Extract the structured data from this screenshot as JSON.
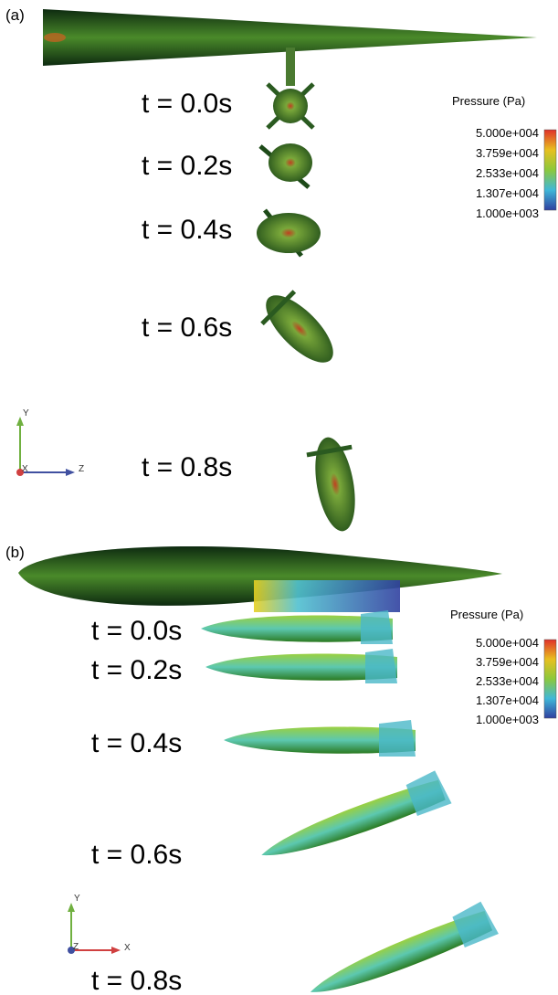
{
  "panels": [
    {
      "label": "(a)",
      "times": [
        "t = 0.0s",
        "t = 0.2s",
        "t = 0.4s",
        "t = 0.6s",
        "t = 0.8s"
      ],
      "colorbar": {
        "title": "Pressure (Pa)",
        "labels": [
          "5.000e+004",
          "3.759e+004",
          "2.533e+004",
          "1.307e+004",
          "1.000e+003"
        ]
      },
      "axes": {
        "up": "Y",
        "right": "Z",
        "out": "X"
      }
    },
    {
      "label": "(b)",
      "times": [
        "t = 0.0s",
        "t = 0.2s",
        "t = 0.4s",
        "t = 0.6s",
        "t = 0.8s"
      ],
      "colorbar": {
        "title": "Pressure (Pa)",
        "labels": [
          "5.000e+004",
          "3.759e+004",
          "2.533e+004",
          "1.307e+004",
          "1.000e+003"
        ]
      },
      "axes": {
        "up": "Y",
        "right": "X",
        "out": "Z"
      }
    }
  ]
}
